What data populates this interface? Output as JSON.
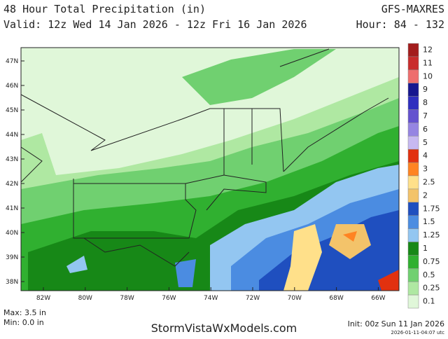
{
  "header": {
    "title": "48 Hour Total Precipitation (in)",
    "valid": "Valid: 12z Wed 14 Jan 2026 - 12z Fri 16 Jan 2026",
    "model": "GFS-MAXRES",
    "hour": "Hour: 84 - 132"
  },
  "map": {
    "lat_labels": [
      "47N",
      "46N",
      "45N",
      "44N",
      "43N",
      "42N",
      "41N",
      "40N",
      "39N",
      "38N"
    ],
    "lon_labels": [
      "82W",
      "80W",
      "78W",
      "76W",
      "74W",
      "72W",
      "70W",
      "68W",
      "66W"
    ]
  },
  "legend": {
    "levels": [
      {
        "label": "12",
        "color": "#a31d1d"
      },
      {
        "label": "11",
        "color": "#c92c2c"
      },
      {
        "label": "10",
        "color": "#ee6e6e"
      },
      {
        "label": "9",
        "color": "#17178f"
      },
      {
        "label": "8",
        "color": "#2f2fbf"
      },
      {
        "label": "7",
        "color": "#6452cf"
      },
      {
        "label": "6",
        "color": "#9585e2"
      },
      {
        "label": "5",
        "color": "#c7b9f1"
      },
      {
        "label": "4",
        "color": "#e2310f"
      },
      {
        "label": "3",
        "color": "#ff8422"
      },
      {
        "label": "2.5",
        "color": "#ffe08a"
      },
      {
        "label": "2",
        "color": "#f3c36a"
      },
      {
        "label": "1.75",
        "color": "#1f4fbf"
      },
      {
        "label": "1.5",
        "color": "#4b8ce1"
      },
      {
        "label": "1.25",
        "color": "#93c6f1"
      },
      {
        "label": "1",
        "color": "#178817"
      },
      {
        "label": "0.75",
        "color": "#30b030"
      },
      {
        "label": "0.5",
        "color": "#70d070"
      },
      {
        "label": "0.25",
        "color": "#afe8a2"
      },
      {
        "label": "0.1",
        "color": "#e0f7d9"
      }
    ]
  },
  "footer": {
    "max": "Max: 3.5 in",
    "min": "Min: 0.0 in",
    "site": "StormVistaWxModels.com",
    "init": "Init: 00z Sun 11 Jan 2026",
    "stamp": "2026-01-11-04:07 utc"
  }
}
